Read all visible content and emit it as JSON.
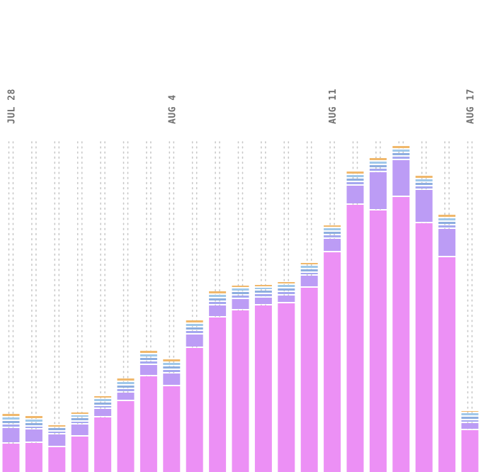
{
  "chart_data": {
    "type": "bar",
    "stacked": true,
    "title": "",
    "xlabel": "",
    "ylabel": "",
    "ylim": [
      0,
      470
    ],
    "legend": "none",
    "grid": "dotted vertical",
    "date_labels": [
      {
        "index": 0,
        "text": "JUL 28"
      },
      {
        "index": 7,
        "text": "AUG 4"
      },
      {
        "index": 14,
        "text": "AUG 11"
      },
      {
        "index": 20,
        "text": "AUG 17"
      }
    ],
    "series_colors": [
      "#ec90f5",
      "#bc9cf5",
      "#a5a8f0",
      "#8eaee0",
      "#a0c8ea",
      "#f0b86c"
    ],
    "series": [
      {
        "values": [
          40,
          41,
          35,
          50,
          77,
          100,
          135,
          121,
          175,
          218,
          228,
          235,
          238,
          260,
          310,
          377,
          369,
          388,
          351,
          303,
          59
        ]
      },
      {
        "values": [
          20,
          17,
          16,
          15,
          10,
          10,
          14,
          16,
          17,
          15,
          14,
          9,
          9,
          15,
          17,
          25,
          52,
          50,
          45,
          38,
          8
        ]
      },
      {
        "values": [
          3,
          2,
          2,
          2,
          2,
          3,
          3,
          3,
          3,
          3,
          3,
          3,
          3,
          2,
          3,
          3,
          3,
          3,
          3,
          3,
          2
        ]
      },
      {
        "values": [
          3,
          3,
          3,
          3,
          3,
          3,
          3,
          3,
          3,
          3,
          3,
          3,
          3,
          3,
          3,
          3,
          3,
          3,
          3,
          3,
          3
        ]
      },
      {
        "values": [
          3,
          3,
          0,
          2,
          3,
          3,
          3,
          3,
          3,
          3,
          3,
          2,
          3,
          3,
          3,
          3,
          3,
          3,
          3,
          3,
          3
        ]
      },
      {
        "values": [
          3,
          3,
          2,
          2,
          2,
          3,
          3,
          3,
          3,
          3,
          2,
          2,
          2,
          2,
          2,
          3,
          3,
          3,
          3,
          3,
          1
        ]
      }
    ]
  }
}
